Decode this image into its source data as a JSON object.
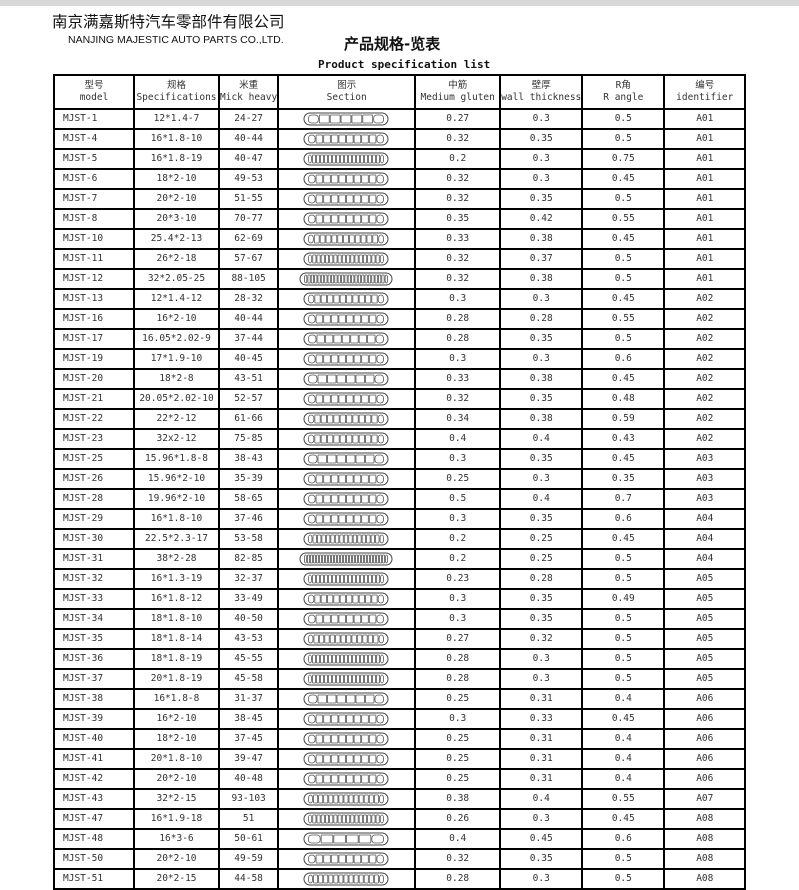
{
  "company": {
    "cn": "南京满嘉斯特汽车零部件有限公司",
    "en": "NANJING MAJESTIC AUTO PARTS CO.,LTD."
  },
  "title": {
    "cn": "产品规格-览表",
    "en": "Product specification list"
  },
  "headers": [
    {
      "cn": "型号",
      "en": "model"
    },
    {
      "cn": "规格",
      "en": "Specifications"
    },
    {
      "cn": "米重",
      "en": "Mick heavy"
    },
    {
      "cn": "图示",
      "en": "Section"
    },
    {
      "cn": "中筋",
      "en": "Medium gluten"
    },
    {
      "cn": "壁厚",
      "en": "wall thickness"
    },
    {
      "cn": "R角",
      "en": "R angle"
    },
    {
      "cn": "编号",
      "en": "identifier"
    }
  ],
  "rows": [
    [
      "MJST-1",
      "12*1.4-7",
      "24-27",
      "0.27",
      "0.3",
      "0.5",
      "A01"
    ],
    [
      "MJST-4",
      "16*1.8-10",
      "40-44",
      "0.32",
      "0.35",
      "0.5",
      "A01"
    ],
    [
      "MJST-5",
      "16*1.8-19",
      "40-47",
      "0.2",
      "0.3",
      "0.75",
      "A01"
    ],
    [
      "MJST-6",
      "18*2-10",
      "49-53",
      "0.32",
      "0.3",
      "0.45",
      "A01"
    ],
    [
      "MJST-7",
      "20*2-10",
      "51-55",
      "0.32",
      "0.35",
      "0.5",
      "A01"
    ],
    [
      "MJST-8",
      "20*3-10",
      "70-77",
      "0.35",
      "0.42",
      "0.55",
      "A01"
    ],
    [
      "MJST-10",
      "25.4*2-13",
      "62-69",
      "0.33",
      "0.38",
      "0.45",
      "A01"
    ],
    [
      "MJST-11",
      "26*2-18",
      "57-67",
      "0.32",
      "0.37",
      "0.5",
      "A01"
    ],
    [
      "MJST-12",
      "32*2.05-25",
      "88-105",
      "0.32",
      "0.38",
      "0.5",
      "A01"
    ],
    [
      "MJST-13",
      "12*1.4-12",
      "28-32",
      "0.3",
      "0.3",
      "0.45",
      "A02"
    ],
    [
      "MJST-16",
      "16*2-10",
      "40-44",
      "0.28",
      "0.28",
      "0.55",
      "A02"
    ],
    [
      "MJST-17",
      "16.05*2.02-9",
      "37-44",
      "0.28",
      "0.35",
      "0.5",
      "A02"
    ],
    [
      "MJST-19",
      "17*1.9-10",
      "40-45",
      "0.3",
      "0.3",
      "0.6",
      "A02"
    ],
    [
      "MJST-20",
      "18*2-8",
      "43-51",
      "0.33",
      "0.38",
      "0.45",
      "A02"
    ],
    [
      "MJST-21",
      "20.05*2.02-10",
      "52-57",
      "0.32",
      "0.35",
      "0.48",
      "A02"
    ],
    [
      "MJST-22",
      "22*2-12",
      "61-66",
      "0.34",
      "0.38",
      "0.59",
      "A02"
    ],
    [
      "MJST-23",
      "32x2-12",
      "75-85",
      "0.4",
      "0.4",
      "0.43",
      "A02"
    ],
    [
      "MJST-25",
      "15.96*1.8-8",
      "38-43",
      "0.3",
      "0.35",
      "0.45",
      "A03"
    ],
    [
      "MJST-26",
      "15.96*2-10",
      "35-39",
      "0.25",
      "0.3",
      "0.35",
      "A03"
    ],
    [
      "MJST-28",
      "19.96*2-10",
      "58-65",
      "0.5",
      "0.4",
      "0.7",
      "A03"
    ],
    [
      "MJST-29",
      "16*1.8-10",
      "37-46",
      "0.3",
      "0.35",
      "0.6",
      "A04"
    ],
    [
      "MJST-30",
      "22.5*2.3-17",
      "53-58",
      "0.2",
      "0.25",
      "0.45",
      "A04"
    ],
    [
      "MJST-31",
      "38*2-28",
      "82-85",
      "0.2",
      "0.25",
      "0.5",
      "A04"
    ],
    [
      "MJST-32",
      "16*1.3-19",
      "32-37",
      "0.23",
      "0.28",
      "0.5",
      "A05"
    ],
    [
      "MJST-33",
      "16*1.8-12",
      "33-49",
      "0.3",
      "0.35",
      "0.49",
      "A05"
    ],
    [
      "MJST-34",
      "18*1.8-10",
      "40-50",
      "0.3",
      "0.35",
      "0.5",
      "A05"
    ],
    [
      "MJST-35",
      "18*1.8-14",
      "43-53",
      "0.27",
      "0.32",
      "0.5",
      "A05"
    ],
    [
      "MJST-36",
      "18*1.8-19",
      "45-55",
      "0.28",
      "0.3",
      "0.5",
      "A05"
    ],
    [
      "MJST-37",
      "20*1.8-19",
      "45-58",
      "0.28",
      "0.3",
      "0.5",
      "A05"
    ],
    [
      "MJST-38",
      "16*1.8-8",
      "31-37",
      "0.25",
      "0.31",
      "0.4",
      "A06"
    ],
    [
      "MJST-39",
      "16*2-10",
      "38-45",
      "0.3",
      "0.33",
      "0.45",
      "A06"
    ],
    [
      "MJST-40",
      "18*2-10",
      "37-45",
      "0.25",
      "0.31",
      "0.4",
      "A06"
    ],
    [
      "MJST-41",
      "20*1.8-10",
      "39-47",
      "0.25",
      "0.31",
      "0.4",
      "A06"
    ],
    [
      "MJST-42",
      "20*2-10",
      "40-48",
      "0.25",
      "0.31",
      "0.4",
      "A06"
    ],
    [
      "MJST-43",
      "32*2-15",
      "93-103",
      "0.38",
      "0.4",
      "0.55",
      "A07"
    ],
    [
      "MJST-47",
      "16*1.9-18",
      "51",
      "0.26",
      "0.3",
      "0.45",
      "A08"
    ],
    [
      "MJST-48",
      "16*3-6",
      "50-61",
      "0.4",
      "0.45",
      "0.6",
      "A08"
    ],
    [
      "MJST-50",
      "20*2-10",
      "49-59",
      "0.32",
      "0.35",
      "0.5",
      "A08"
    ],
    [
      "MJST-51",
      "20*2-15",
      "44-58",
      "0.28",
      "0.3",
      "0.5",
      "A08"
    ]
  ]
}
